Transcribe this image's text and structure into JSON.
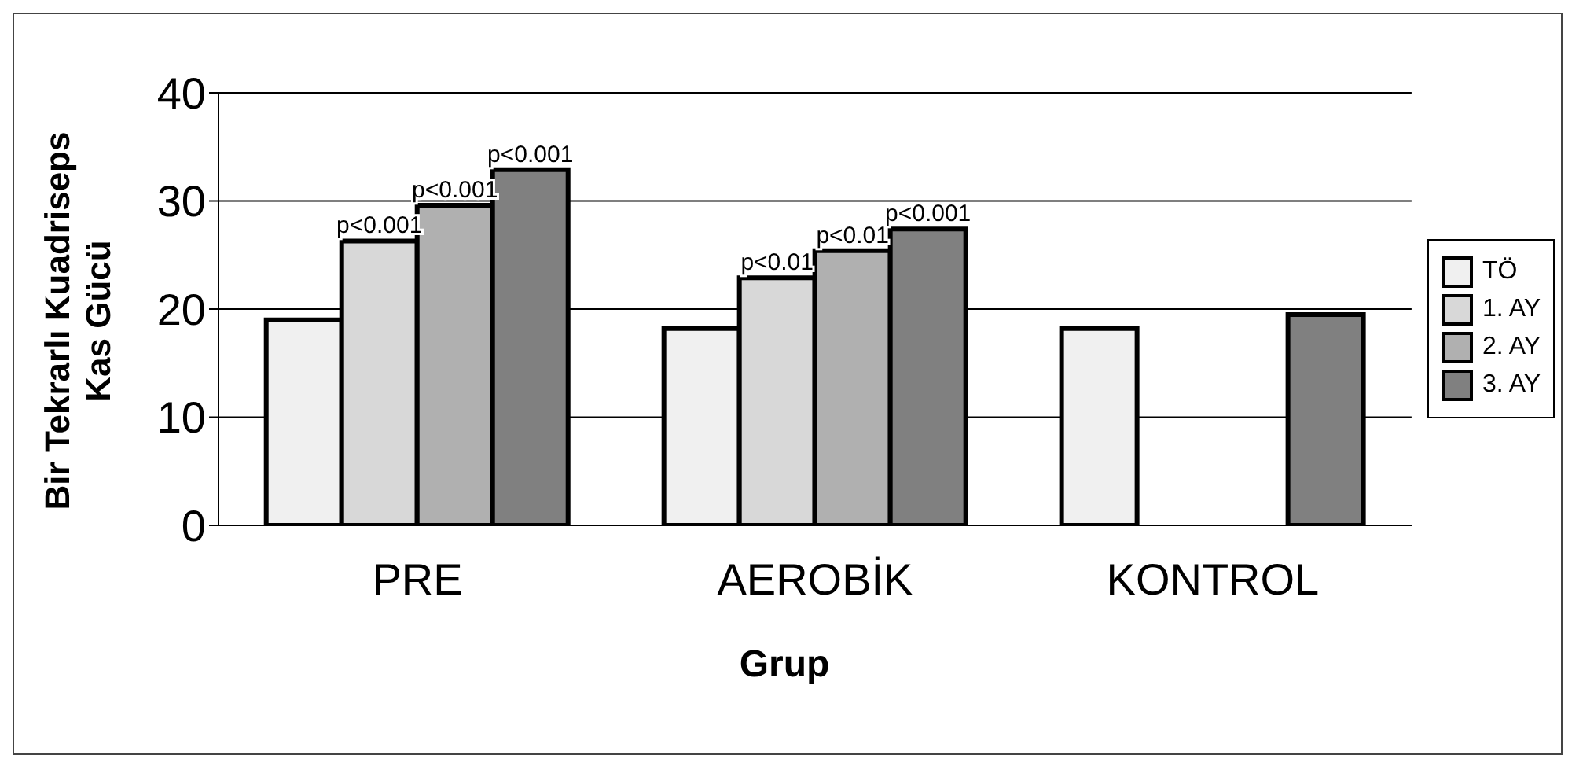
{
  "chart_data": {
    "type": "bar",
    "xlabel": "Grup",
    "ylabel": "Bir Tekrarlı Kuadriseps Kas Gücü",
    "categories": [
      "PRE",
      "AEROBİK",
      "KONTROL"
    ],
    "series": [
      {
        "name": "TÖ",
        "color": "#f0f0f0",
        "values": [
          19,
          18.2,
          18.2
        ]
      },
      {
        "name": "1. AY",
        "color": "#d8d8d8",
        "values": [
          26.3,
          22.9,
          null
        ],
        "value_labels": [
          "p<0.001",
          "p<0.01",
          null
        ]
      },
      {
        "name": "2. AY",
        "color": "#b0b0b0",
        "values": [
          29.6,
          25.4,
          null
        ],
        "value_labels": [
          "p<0.001",
          "p<0.01",
          null
        ]
      },
      {
        "name": "3. AY",
        "color": "#808080",
        "values": [
          32.9,
          27.4,
          19.5
        ],
        "value_labels": [
          "p<0.001",
          "p<0.001",
          null
        ]
      }
    ],
    "ylim": [
      0,
      40
    ],
    "yticks": [
      0,
      10,
      20,
      30,
      40
    ],
    "grid": "y",
    "legend": "right"
  }
}
